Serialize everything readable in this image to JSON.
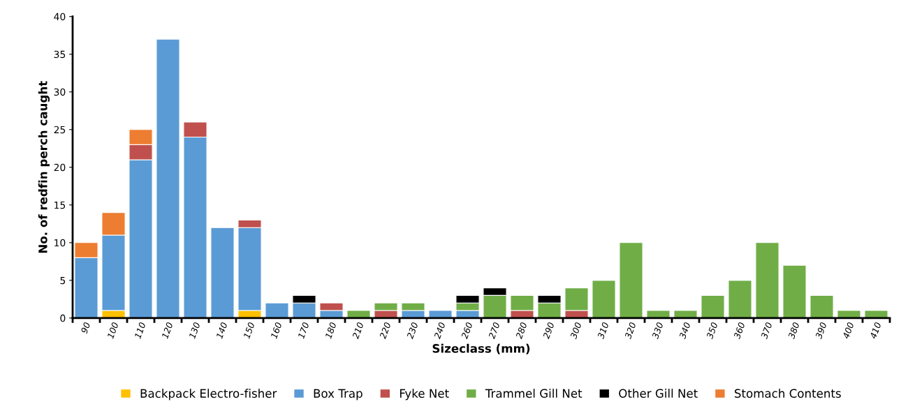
{
  "chart_data": {
    "type": "bar",
    "stacked": true,
    "xlabel": "Sizeclass (mm)",
    "ylabel": "No. of redfin perch caught",
    "categories": [
      "90",
      "100",
      "110",
      "120",
      "130",
      "140",
      "150",
      "160",
      "170",
      "180",
      "210",
      "220",
      "230",
      "240",
      "260",
      "270",
      "280",
      "290",
      "300",
      "310",
      "320",
      "330",
      "340",
      "350",
      "360",
      "370",
      "380",
      "390",
      "400",
      "410"
    ],
    "series": [
      {
        "name": "Backpack Electro-fisher",
        "color": "#ffc000",
        "values": [
          0,
          1,
          0,
          0,
          0,
          0,
          1,
          0,
          0,
          0,
          0,
          0,
          0,
          0,
          0,
          0,
          0,
          0,
          0,
          0,
          0,
          0,
          0,
          0,
          0,
          0,
          0,
          0,
          0,
          0
        ]
      },
      {
        "name": "Box Trap",
        "color": "#5b9bd5",
        "values": [
          8,
          10,
          21,
          37,
          24,
          12,
          11,
          2,
          2,
          1,
          0,
          0,
          1,
          1,
          1,
          0,
          0,
          0,
          0,
          0,
          0,
          0,
          0,
          0,
          0,
          0,
          0,
          0,
          0,
          0
        ]
      },
      {
        "name": "Fyke Net",
        "color": "#c0504d",
        "values": [
          0,
          0,
          2,
          0,
          2,
          0,
          1,
          0,
          0,
          1,
          0,
          1,
          0,
          0,
          0,
          0,
          1,
          0,
          1,
          0,
          0,
          0,
          0,
          0,
          0,
          0,
          0,
          0,
          0,
          0
        ]
      },
      {
        "name": "Trammel Gill Net",
        "color": "#70ad47",
        "values": [
          0,
          0,
          0,
          0,
          0,
          0,
          0,
          0,
          0,
          0,
          1,
          1,
          1,
          0,
          1,
          3,
          2,
          2,
          3,
          5,
          10,
          1,
          1,
          3,
          5,
          10,
          7,
          3,
          1,
          1
        ]
      },
      {
        "name": "Other Gill Net",
        "color": "#000000",
        "values": [
          0,
          0,
          0,
          0,
          0,
          0,
          0,
          0,
          1,
          0,
          0,
          0,
          0,
          0,
          1,
          1,
          0,
          1,
          0,
          0,
          0,
          0,
          0,
          0,
          0,
          0,
          0,
          0,
          0,
          0
        ]
      },
      {
        "name": "Stomach Contents",
        "color": "#ed7d31",
        "values": [
          2,
          3,
          2,
          0,
          0,
          0,
          0,
          0,
          0,
          0,
          0,
          0,
          0,
          0,
          0,
          0,
          0,
          0,
          0,
          0,
          0,
          0,
          0,
          0,
          0,
          0,
          0,
          0,
          0,
          0
        ]
      }
    ],
    "ylim": [
      0,
      40
    ],
    "yticks": [
      0,
      5,
      10,
      15,
      20,
      25,
      30,
      35,
      40
    ],
    "grid": false,
    "legend": "bottom"
  }
}
